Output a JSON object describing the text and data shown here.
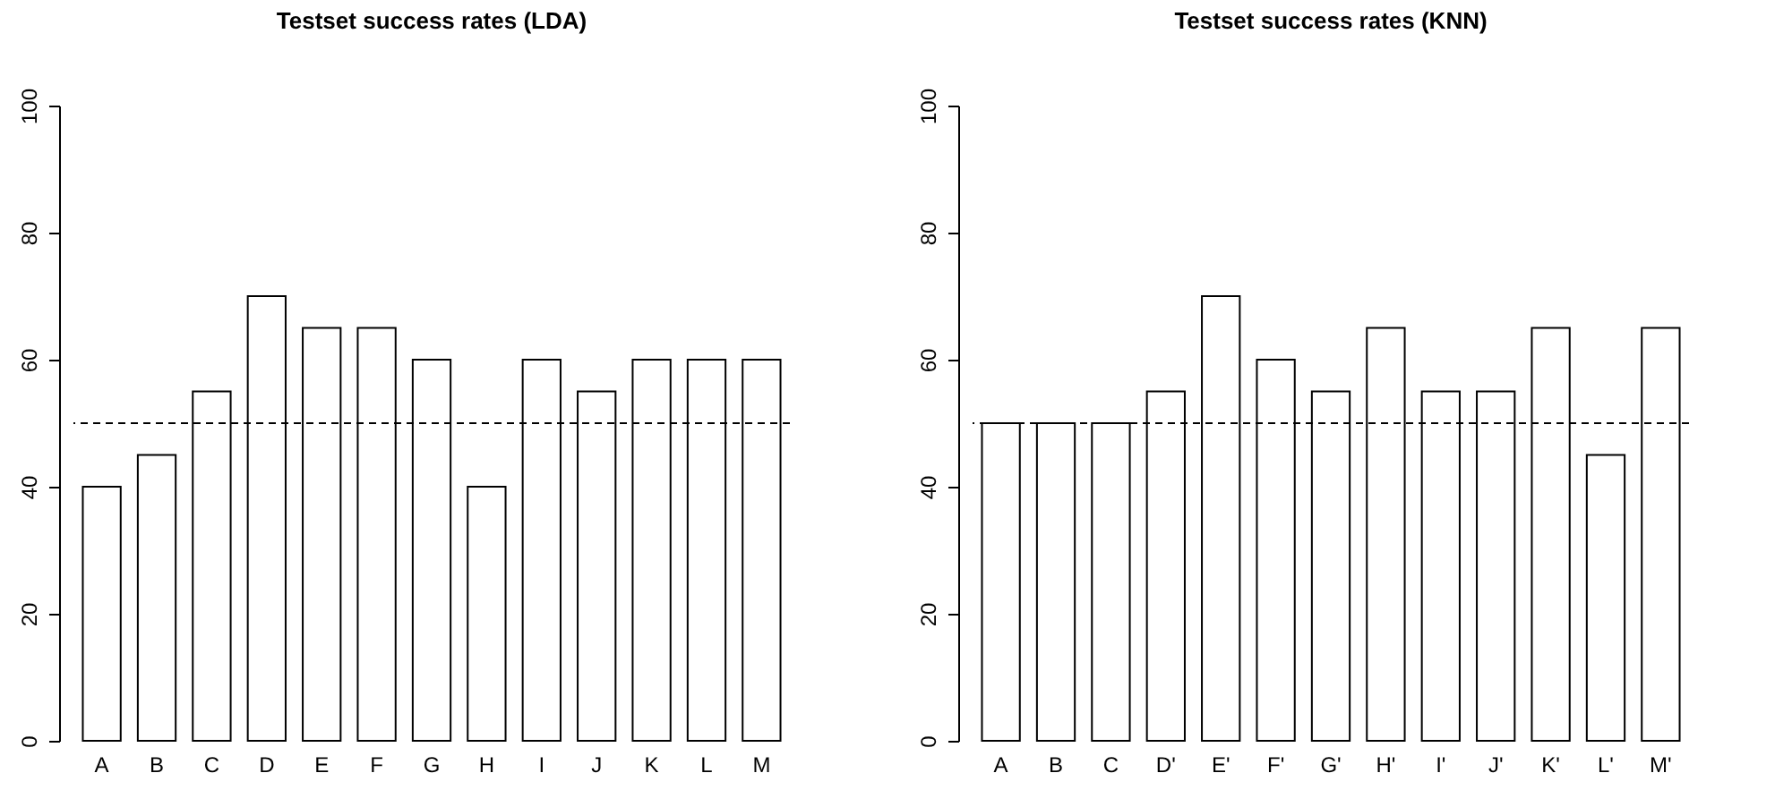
{
  "chart_data": [
    {
      "type": "bar",
      "title": "Testset success rates (LDA)",
      "categories": [
        "A",
        "B",
        "C",
        "D",
        "E",
        "F",
        "G",
        "H",
        "I",
        "J",
        "K",
        "L",
        "M"
      ],
      "values": [
        40,
        45,
        55,
        70,
        65,
        65,
        60,
        40,
        60,
        55,
        60,
        60,
        60
      ],
      "color": "#ffffff",
      "ylim": [
        0,
        100
      ],
      "yticks": [
        0,
        20,
        40,
        60,
        80,
        100
      ],
      "grid": false,
      "ref_lines": [
        {
          "axis": "y",
          "value": 50,
          "line_style": "dashed"
        }
      ]
    },
    {
      "type": "bar",
      "title": "Testset success rates (KNN)",
      "categories": [
        "A",
        "B",
        "C",
        "D'",
        "E'",
        "F'",
        "G'",
        "H'",
        "I'",
        "J'",
        "K'",
        "L'",
        "M'"
      ],
      "values": [
        50,
        50,
        50,
        55,
        70,
        60,
        55,
        65,
        55,
        55,
        65,
        45,
        65
      ],
      "color": "#ffffff",
      "ylim": [
        0,
        100
      ],
      "yticks": [
        0,
        20,
        40,
        60,
        80,
        100
      ],
      "grid": false,
      "ref_lines": [
        {
          "axis": "y",
          "value": 50,
          "line_style": "dashed"
        }
      ]
    }
  ]
}
